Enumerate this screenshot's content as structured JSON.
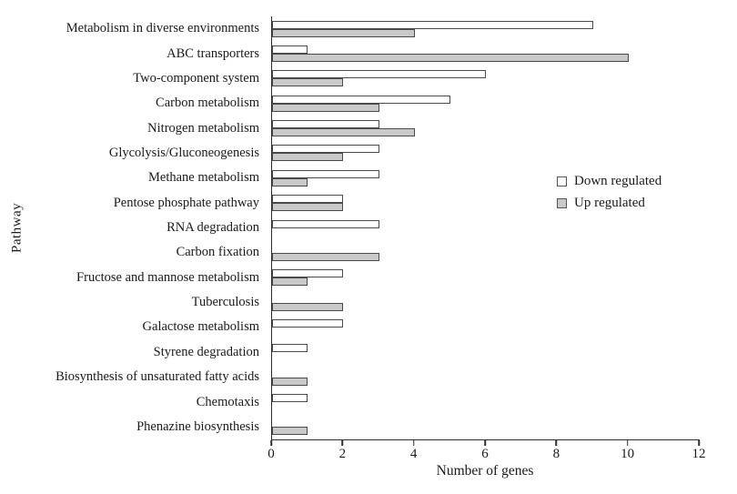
{
  "figure": {
    "background": "#ffffff",
    "text_color": "#1a1a1a",
    "axis_color": "#2f2f2f",
    "bar_border_color": "#4a4a4a"
  },
  "chart_data": {
    "type": "bar",
    "orientation": "horizontal",
    "title": "",
    "xlabel": "Number of genes",
    "ylabel": "Pathway",
    "xlim": [
      0,
      12
    ],
    "xticks": [
      0,
      2,
      4,
      6,
      8,
      10,
      12
    ],
    "grid": false,
    "legend_position": "middle-right",
    "categories": [
      "Metabolism in diverse environments",
      "ABC transporters",
      "Two-component system",
      "Carbon metabolism",
      "Nitrogen metabolism",
      "Glycolysis/Gluconeogenesis",
      "Methane metabolism",
      "Pentose phosphate pathway",
      "RNA degradation",
      "Carbon fixation",
      "Fructose and mannose metabolism",
      "Tuberculosis",
      "Galactose metabolism",
      "Styrene degradation",
      "Biosynthesis of unsaturated fatty acids",
      "Chemotaxis",
      "Phenazine biosynthesis"
    ],
    "series": [
      {
        "name": "Down regulated",
        "color": "#ffffff",
        "values": [
          9,
          1,
          6,
          5,
          3,
          3,
          3,
          2,
          3,
          0,
          2,
          0,
          2,
          1,
          0,
          1,
          0
        ]
      },
      {
        "name": "Up regulated",
        "color": "#c9c9c9",
        "values": [
          4,
          10,
          2,
          3,
          4,
          2,
          1,
          2,
          0,
          3,
          1,
          2,
          0,
          0,
          1,
          0,
          1
        ]
      }
    ]
  }
}
